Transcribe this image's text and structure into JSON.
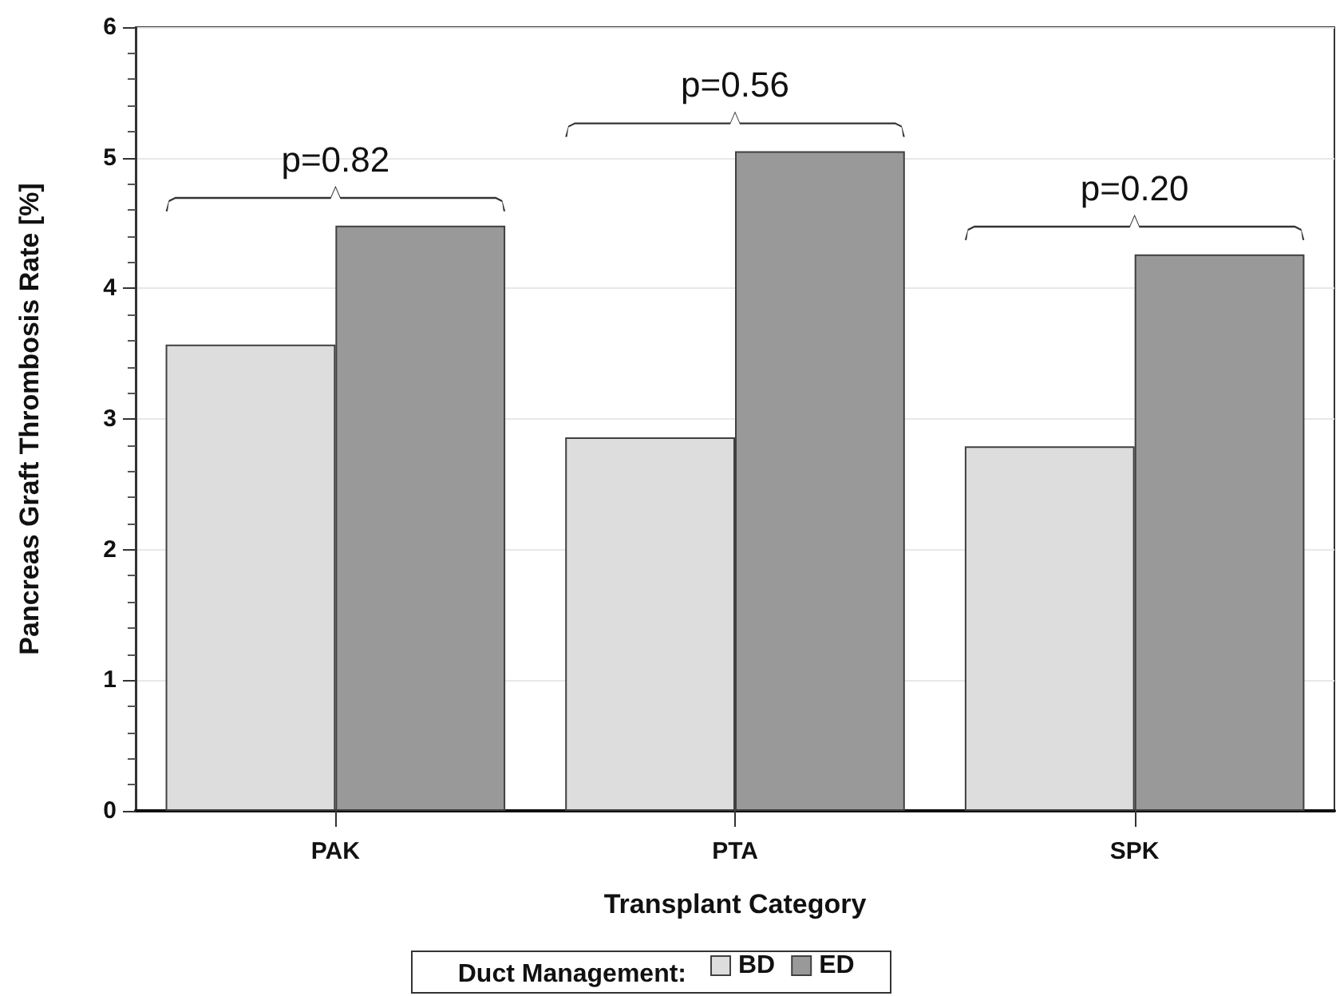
{
  "chart_data": {
    "type": "bar",
    "xlabel": "Transplant Category",
    "ylabel": "Pancreas Graft Thrombosis Rate [%]",
    "legend_title": "Duct Management:",
    "categories": [
      "PAK",
      "PTA",
      "SPK"
    ],
    "series": [
      {
        "name": "BD",
        "color": "#dcdddc",
        "values": [
          3.57,
          2.86,
          2.79
        ]
      },
      {
        "name": "ED",
        "color": "#989998",
        "values": [
          4.48,
          5.05,
          4.26
        ]
      }
    ],
    "ylim": [
      0,
      6
    ],
    "yticks": [
      0,
      1,
      2,
      3,
      4,
      5,
      6
    ],
    "grid": "y",
    "legend": "bottom",
    "annotations": [
      "p=0.82",
      "p=0.56",
      "p=0.20"
    ]
  }
}
